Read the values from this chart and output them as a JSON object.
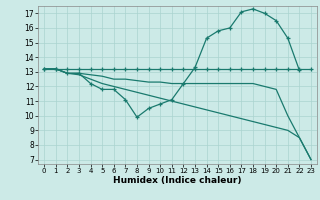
{
  "xlabel": "Humidex (Indice chaleur)",
  "xlim": [
    -0.5,
    23.5
  ],
  "ylim": [
    6.7,
    17.5
  ],
  "yticks": [
    7,
    8,
    9,
    10,
    11,
    12,
    13,
    14,
    15,
    16,
    17
  ],
  "xticks": [
    0,
    1,
    2,
    3,
    4,
    5,
    6,
    7,
    8,
    9,
    10,
    11,
    12,
    13,
    14,
    15,
    16,
    17,
    18,
    19,
    20,
    21,
    22,
    23
  ],
  "bg_color": "#cceae7",
  "grid_color": "#aad4d0",
  "line_color": "#1a7a6e",
  "line1_x": [
    0,
    1,
    2,
    3,
    4,
    5,
    6,
    7,
    8,
    9,
    10,
    11,
    12,
    13,
    14,
    15,
    16,
    17,
    18,
    19,
    20,
    21,
    22,
    23
  ],
  "line1_y": [
    13.2,
    13.2,
    13.2,
    13.2,
    13.2,
    13.2,
    13.2,
    13.2,
    13.2,
    13.2,
    13.2,
    13.2,
    13.2,
    13.2,
    13.2,
    13.2,
    13.2,
    13.2,
    13.2,
    13.2,
    13.2,
    13.2,
    13.2,
    13.2
  ],
  "line2_x": [
    0,
    1,
    2,
    3,
    4,
    5,
    6,
    7,
    8,
    9,
    10,
    11,
    12,
    13,
    14,
    15,
    16,
    17,
    18,
    19,
    20,
    21,
    22
  ],
  "line2_y": [
    13.2,
    13.2,
    12.9,
    12.9,
    12.2,
    11.8,
    11.8,
    11.1,
    9.9,
    10.5,
    10.8,
    11.1,
    12.2,
    13.3,
    15.3,
    15.8,
    16.0,
    17.1,
    17.3,
    17.0,
    16.5,
    15.3,
    13.1
  ],
  "line3_x": [
    0,
    1,
    2,
    3,
    4,
    5,
    6,
    7,
    8,
    9,
    10,
    11,
    12,
    13,
    14,
    15,
    16,
    17,
    18,
    19,
    20,
    21,
    22,
    23
  ],
  "line3_y": [
    13.2,
    13.2,
    12.9,
    12.8,
    12.5,
    12.2,
    12.0,
    11.8,
    11.6,
    11.4,
    11.2,
    11.0,
    10.8,
    10.6,
    10.4,
    10.2,
    10.0,
    9.8,
    9.6,
    9.4,
    9.2,
    9.0,
    8.5,
    7.0
  ],
  "line4_x": [
    0,
    1,
    2,
    3,
    4,
    5,
    6,
    7,
    8,
    9,
    10,
    11,
    12,
    13,
    14,
    15,
    16,
    17,
    18,
    19,
    20,
    21,
    22,
    23
  ],
  "line4_y": [
    13.2,
    13.2,
    12.9,
    12.9,
    12.8,
    12.7,
    12.5,
    12.5,
    12.4,
    12.3,
    12.3,
    12.2,
    12.2,
    12.2,
    12.2,
    12.2,
    12.2,
    12.2,
    12.2,
    12.0,
    11.8,
    10.0,
    8.5,
    7.0
  ]
}
